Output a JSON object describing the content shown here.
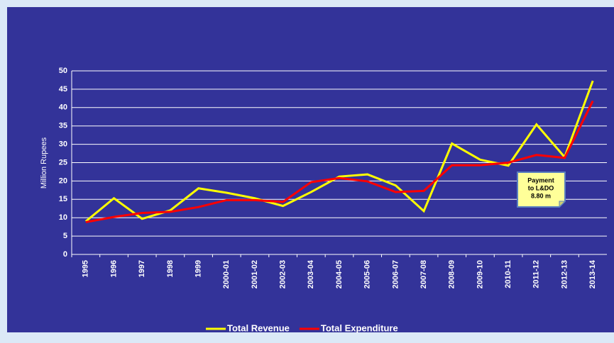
{
  "chart_data": {
    "type": "line",
    "y_label": "Million Rupees",
    "categories": [
      "1995",
      "1996",
      "1997",
      "1998",
      "1999",
      "2000-01",
      "2001-02",
      "2002-03",
      "2003-04",
      "2004-05",
      "2005-06",
      "2006-07",
      "2007-08",
      "2008-09",
      "2009-10",
      "2010-11",
      "2011-12",
      "2012-13",
      "2013-14"
    ],
    "series": [
      {
        "name": "Total Revenue",
        "color": "#ffff00",
        "values": [
          9,
          15.3,
          9.7,
          12,
          18,
          16.8,
          15.3,
          13.2,
          17,
          21.2,
          21.8,
          18.8,
          11.8,
          30.2,
          25.8,
          24.2,
          35.4,
          26.5,
          47.3
        ]
      },
      {
        "name": "Total Expenditure",
        "color": "#ff0000",
        "values": [
          8.8,
          10.2,
          11.3,
          11.6,
          12.9,
          14.8,
          14.8,
          14.3,
          19.7,
          20.8,
          19.9,
          17,
          17.3,
          24.3,
          24.3,
          25,
          27.1,
          26.3,
          41.8
        ]
      }
    ],
    "ylim": [
      0,
      50
    ],
    "yticks": [
      0,
      5,
      10,
      15,
      20,
      25,
      30,
      35,
      40,
      45,
      50
    ],
    "grid": true,
    "legend": "bottom",
    "annotation": [
      "Payment",
      "to L&DO",
      "8.80 m"
    ]
  }
}
